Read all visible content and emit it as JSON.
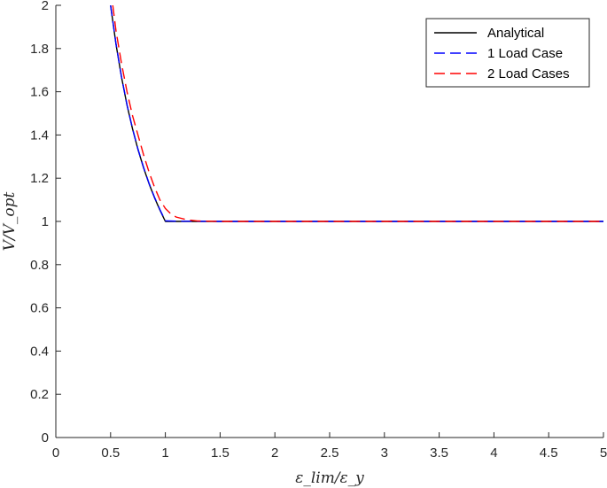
{
  "chart_data": {
    "type": "line",
    "title": "",
    "xlabel": "ε_lim/ε_y",
    "ylabel": "V/V_opt",
    "xlim": [
      0,
      5
    ],
    "ylim": [
      0,
      2
    ],
    "xticks": [
      0,
      0.5,
      1,
      1.5,
      2,
      2.5,
      3,
      3.5,
      4,
      4.5,
      5
    ],
    "xtick_labels": [
      "0",
      "0.5",
      "1",
      "1.5",
      "2",
      "2.5",
      "3",
      "3.5",
      "4",
      "4.5",
      "5"
    ],
    "yticks": [
      0,
      0.2,
      0.4,
      0.6,
      0.8,
      1,
      1.2,
      1.4,
      1.6,
      1.8,
      2
    ],
    "ytick_labels": [
      "0",
      "0.2",
      "0.4",
      "0.6",
      "0.8",
      "1",
      "1.2",
      "1.4",
      "1.6",
      "1.8",
      "2"
    ],
    "grid": false,
    "legend_position": "top-right",
    "series": [
      {
        "name": "Analytical",
        "color": "#000000",
        "dash": "solid",
        "x": [
          0.5,
          0.55,
          0.6,
          0.65,
          0.7,
          0.75,
          0.8,
          0.85,
          0.9,
          0.95,
          1.0,
          1.5,
          2,
          3,
          4,
          5
        ],
        "y": [
          2.0,
          1.818,
          1.667,
          1.538,
          1.429,
          1.333,
          1.25,
          1.176,
          1.111,
          1.053,
          1.0,
          1.0,
          1.0,
          1.0,
          1.0,
          1.0
        ]
      },
      {
        "name": "1 Load Case",
        "color": "#0000ff",
        "dash": "dashed",
        "x": [
          0.5,
          0.55,
          0.6,
          0.65,
          0.7,
          0.75,
          0.8,
          0.85,
          0.9,
          0.95,
          1.0,
          1.1,
          1.5,
          2,
          3,
          4,
          5
        ],
        "y": [
          2.0,
          1.82,
          1.668,
          1.54,
          1.43,
          1.335,
          1.252,
          1.178,
          1.113,
          1.055,
          1.003,
          1.001,
          1.0,
          1.0,
          1.0,
          1.0,
          1.0
        ]
      },
      {
        "name": "2 Load Cases",
        "color": "#ff0000",
        "dash": "dashed",
        "x": [
          0.52,
          0.55,
          0.6,
          0.65,
          0.7,
          0.75,
          0.8,
          0.85,
          0.9,
          0.95,
          1.0,
          1.05,
          1.1,
          1.2,
          1.3,
          1.5,
          2,
          3,
          4,
          5
        ],
        "y": [
          2.0,
          1.88,
          1.73,
          1.6,
          1.49,
          1.4,
          1.31,
          1.23,
          1.16,
          1.1,
          1.06,
          1.035,
          1.02,
          1.007,
          1.002,
          1.0,
          1.0,
          1.0,
          1.0,
          1.0
        ]
      }
    ]
  }
}
